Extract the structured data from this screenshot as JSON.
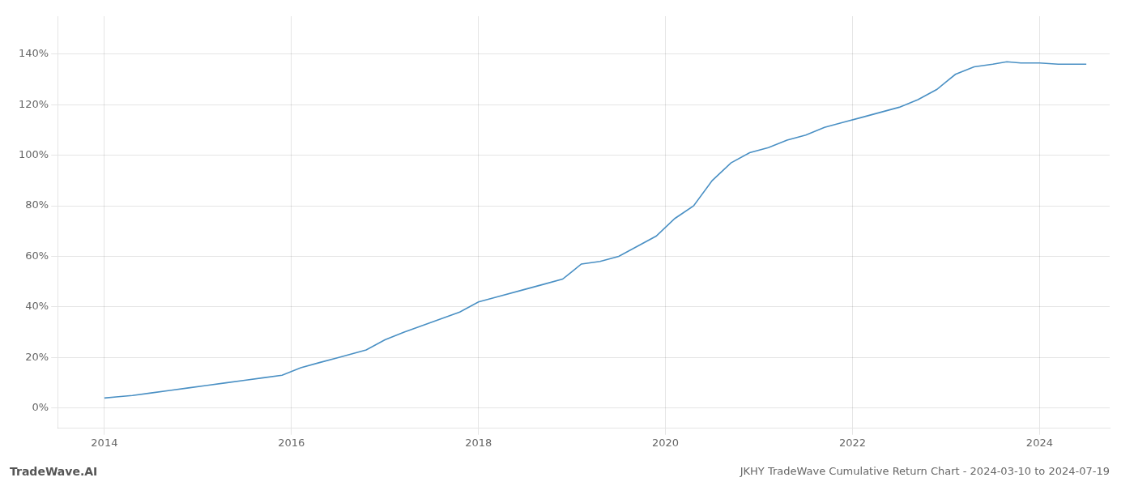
{
  "chart_data": {
    "type": "line",
    "title": "JKHY TradeWave Cumulative Return Chart - 2024-03-10 to 2024-07-19",
    "annotations": [
      "TradeWave.AI"
    ],
    "color": "#4a90c4",
    "grid": true,
    "x": [
      2014.0,
      2014.15,
      2014.3,
      2014.5,
      2014.7,
      2014.9,
      2015.1,
      2015.3,
      2015.5,
      2015.7,
      2015.9,
      2016.1,
      2016.3,
      2016.5,
      2016.8,
      2017.0,
      2017.2,
      2017.5,
      2017.8,
      2018.0,
      2018.2,
      2018.5,
      2018.7,
      2018.9,
      2019.0,
      2019.1,
      2019.3,
      2019.5,
      2019.7,
      2019.9,
      2020.1,
      2020.3,
      2020.5,
      2020.7,
      2020.9,
      2021.1,
      2021.3,
      2021.5,
      2021.7,
      2021.9,
      2022.1,
      2022.3,
      2022.5,
      2022.7,
      2022.9,
      2023.0,
      2023.1,
      2023.3,
      2023.5,
      2023.65,
      2023.8,
      2024.0,
      2024.2,
      2024.5
    ],
    "values": [
      4,
      4.5,
      5,
      6,
      7,
      8,
      9,
      10,
      11,
      12,
      13,
      16,
      18,
      20,
      23,
      27,
      30,
      34,
      38,
      42,
      44,
      47,
      49,
      51,
      54,
      57,
      58,
      60,
      64,
      68,
      75,
      80,
      90,
      97,
      101,
      103,
      106,
      108,
      111,
      113,
      115,
      117,
      119,
      122,
      126,
      129,
      132,
      135,
      136,
      137,
      136.5,
      136.5,
      136,
      136
    ],
    "xlim": [
      2013.5,
      2024.75
    ],
    "xticks": [
      2014,
      2016,
      2018,
      2020,
      2022,
      2024
    ],
    "ylim": [
      -8,
      155
    ],
    "yticks": [
      {
        "value": 0,
        "label": "0%"
      },
      {
        "value": 20,
        "label": "20%"
      },
      {
        "value": 40,
        "label": "40%"
      },
      {
        "value": 60,
        "label": "60%"
      },
      {
        "value": 80,
        "label": "80%"
      },
      {
        "value": 100,
        "label": "100%"
      },
      {
        "value": 120,
        "label": "120%"
      },
      {
        "value": 140,
        "label": "140%"
      }
    ]
  }
}
